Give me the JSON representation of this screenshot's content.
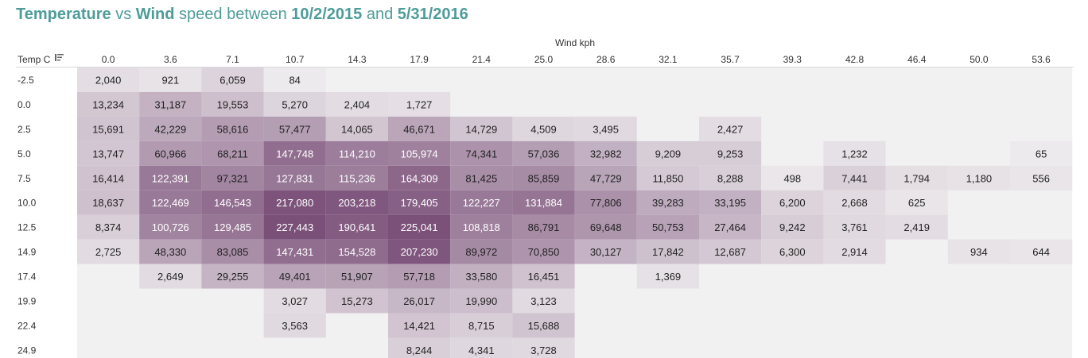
{
  "title": {
    "part1": "Temperature",
    "part2": " vs ",
    "part3": "Wind",
    "part4": " speed between ",
    "part5": "10/2/2015",
    "part6": " and ",
    "part7": "5/31/2016"
  },
  "colors": {
    "title": "#4e9c9a",
    "low": "#efedef",
    "high": "#7a4f78",
    "cell_background": "#f1f1f1"
  },
  "icons": {
    "sort": "sort-descending-icon"
  },
  "chart_data": {
    "type": "heatmap",
    "xlabel": "Wind kph",
    "ylabel": "Temp C",
    "x": [
      "0.0",
      "3.6",
      "7.1",
      "10.7",
      "14.3",
      "17.9",
      "21.4",
      "25.0",
      "28.6",
      "32.1",
      "35.7",
      "39.3",
      "42.8",
      "46.4",
      "50.0",
      "53.6"
    ],
    "y": [
      "-2.5",
      "0.0",
      "2.5",
      "5.0",
      "7.5",
      "10.0",
      "12.5",
      "14.9",
      "17.4",
      "19.9",
      "22.4",
      "24.9"
    ],
    "values": [
      [
        2040,
        921,
        6059,
        84,
        null,
        null,
        null,
        null,
        null,
        null,
        null,
        null,
        null,
        null,
        null,
        null
      ],
      [
        13234,
        31187,
        19553,
        5270,
        2404,
        1727,
        null,
        null,
        null,
        null,
        null,
        null,
        null,
        null,
        null,
        null
      ],
      [
        15691,
        42229,
        58616,
        57477,
        14065,
        46671,
        14729,
        4509,
        3495,
        null,
        2427,
        null,
        null,
        null,
        null,
        null
      ],
      [
        13747,
        60966,
        68211,
        147748,
        114210,
        105974,
        74341,
        57036,
        32982,
        9209,
        9253,
        null,
        1232,
        null,
        null,
        65
      ],
      [
        16414,
        122391,
        97321,
        127831,
        115236,
        164309,
        81425,
        85859,
        47729,
        11850,
        8288,
        498,
        7441,
        1794,
        1180,
        556
      ],
      [
        18637,
        122469,
        146543,
        217080,
        203218,
        179405,
        122227,
        131884,
        77806,
        39283,
        33195,
        6200,
        2668,
        625,
        null,
        null
      ],
      [
        8374,
        100726,
        129485,
        227443,
        190641,
        225041,
        108818,
        86791,
        69648,
        50753,
        27464,
        9242,
        3761,
        2419,
        null,
        null
      ],
      [
        2725,
        48330,
        83085,
        147431,
        154528,
        207230,
        89972,
        70850,
        30127,
        17842,
        12687,
        6300,
        2914,
        null,
        934,
        644
      ],
      [
        null,
        2649,
        29255,
        49401,
        51907,
        57718,
        33580,
        16451,
        null,
        1369,
        null,
        null,
        null,
        null,
        null,
        null
      ],
      [
        null,
        null,
        null,
        3027,
        15273,
        26017,
        19990,
        3123,
        null,
        null,
        null,
        null,
        null,
        null,
        null,
        null
      ],
      [
        null,
        null,
        null,
        3563,
        null,
        14421,
        8715,
        15688,
        null,
        null,
        null,
        null,
        null,
        null,
        null,
        null
      ],
      [
        null,
        null,
        null,
        null,
        null,
        8244,
        4341,
        3728,
        null,
        null,
        null,
        null,
        null,
        null,
        null,
        null
      ]
    ]
  }
}
